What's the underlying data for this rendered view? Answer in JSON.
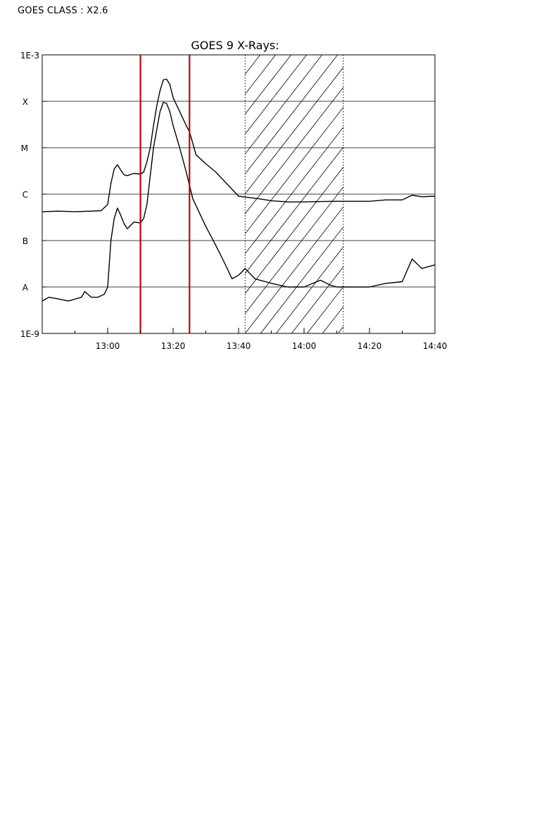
{
  "header": {
    "label": "GOES CLASS : X2.6"
  },
  "chart_data": {
    "type": "line",
    "title": "GOES 9 X-Rays:",
    "xlabel": "",
    "ylabel": "",
    "y_scale": "log",
    "ylim": [
      1e-09,
      0.001
    ],
    "y_ticks": [
      {
        "label": "1E-9",
        "value": 1e-09
      },
      {
        "label": "A",
        "value": 1e-08
      },
      {
        "label": "B",
        "value": 1e-07
      },
      {
        "label": "C",
        "value": 1e-06
      },
      {
        "label": "M",
        "value": 1e-05
      },
      {
        "label": "X",
        "value": 0.0001
      },
      {
        "label": "1E-3",
        "value": 0.001
      }
    ],
    "class_gridlines": [
      1e-08,
      1e-07,
      1e-06,
      1e-05,
      0.0001
    ],
    "x_axis": {
      "unit": "minutes",
      "range": [
        "12:40",
        "14:40"
      ]
    },
    "x_ticks": [
      "13:00",
      "13:20",
      "13:40",
      "14:00",
      "14:20",
      "14:40"
    ],
    "grid": true,
    "series": [
      {
        "color": "#000000",
        "points": [
          [
            "12:40",
            4.2e-07
          ],
          [
            "12:45",
            4.3e-07
          ],
          [
            "12:50",
            4.2e-07
          ],
          [
            "12:55",
            4.3e-07
          ],
          [
            "12:58",
            4.4e-07
          ],
          [
            "13:00",
            6e-07
          ],
          [
            "13:01",
            1.7e-06
          ],
          [
            "13:02",
            3.5e-06
          ],
          [
            "13:03",
            4.3e-06
          ],
          [
            "13:04",
            3.3e-06
          ],
          [
            "13:05",
            2.6e-06
          ],
          [
            "13:06",
            2.5e-06
          ],
          [
            "13:08",
            2.8e-06
          ],
          [
            "13:10",
            2.7e-06
          ],
          [
            "13:11",
            3e-06
          ],
          [
            "13:12",
            5e-06
          ],
          [
            "13:13",
            1e-05
          ],
          [
            "13:14",
            3e-05
          ],
          [
            "13:15",
            8e-05
          ],
          [
            "13:16",
            0.00017
          ],
          [
            "13:17",
            0.00029
          ],
          [
            "13:18",
            0.0003
          ],
          [
            "13:19",
            0.00023
          ],
          [
            "13:20",
            0.00012
          ],
          [
            "13:22",
            6e-05
          ],
          [
            "13:24",
            3e-05
          ],
          [
            "13:25",
            2.2e-05
          ],
          [
            "13:27",
            7e-06
          ],
          [
            "13:30",
            4.5e-06
          ],
          [
            "13:33",
            3e-06
          ],
          [
            "13:36",
            1.8e-06
          ],
          [
            "13:40",
            9e-07
          ],
          [
            "13:43",
            8.5e-07
          ],
          [
            "13:46",
            8e-07
          ],
          [
            "13:50",
            7.2e-07
          ],
          [
            "13:55",
            6.8e-07
          ],
          [
            "14:00",
            6.8e-07
          ],
          [
            "14:05",
            6.9e-07
          ],
          [
            "14:10",
            7e-07
          ],
          [
            "14:15",
            7e-07
          ],
          [
            "14:20",
            7e-07
          ],
          [
            "14:25",
            7.5e-07
          ],
          [
            "14:30",
            7.5e-07
          ],
          [
            "14:33",
            9.5e-07
          ],
          [
            "14:36",
            8.8e-07
          ],
          [
            "14:40",
            9e-07
          ]
        ]
      },
      {
        "color": "#000000",
        "points": [
          [
            "12:40",
            5e-09
          ],
          [
            "12:42",
            6e-09
          ],
          [
            "12:45",
            5.5e-09
          ],
          [
            "12:48",
            5e-09
          ],
          [
            "12:52",
            6e-09
          ],
          [
            "12:53",
            8e-09
          ],
          [
            "12:55",
            6e-09
          ],
          [
            "12:57",
            6e-09
          ],
          [
            "12:59",
            7e-09
          ],
          [
            "13:00",
            1e-08
          ],
          [
            "13:01",
            1e-07
          ],
          [
            "13:02",
            3e-07
          ],
          [
            "13:03",
            5e-07
          ],
          [
            "13:04",
            3.5e-07
          ],
          [
            "13:05",
            2.3e-07
          ],
          [
            "13:06",
            1.8e-07
          ],
          [
            "13:08",
            2.5e-07
          ],
          [
            "13:10",
            2.4e-07
          ],
          [
            "13:11",
            3e-07
          ],
          [
            "13:12",
            6e-07
          ],
          [
            "13:13",
            2.5e-06
          ],
          [
            "13:14",
            1e-05
          ],
          [
            "13:15",
            2.5e-05
          ],
          [
            "13:16",
            6e-05
          ],
          [
            "13:17",
            9.5e-05
          ],
          [
            "13:18",
            9e-05
          ],
          [
            "13:19",
            6e-05
          ],
          [
            "13:20",
            3e-05
          ],
          [
            "13:22",
            1e-05
          ],
          [
            "13:24",
            3e-06
          ],
          [
            "13:26",
            8e-07
          ],
          [
            "13:28",
            4e-07
          ],
          [
            "13:30",
            2e-07
          ],
          [
            "13:33",
            8e-08
          ],
          [
            "13:36",
            3e-08
          ],
          [
            "13:38",
            1.5e-08
          ],
          [
            "13:40",
            1.8e-08
          ],
          [
            "13:42",
            2.5e-08
          ],
          [
            "13:45",
            1.5e-08
          ],
          [
            "13:50",
            1.2e-08
          ],
          [
            "13:55",
            1e-08
          ],
          [
            "14:00",
            1e-08
          ],
          [
            "14:05",
            1.4e-08
          ],
          [
            "14:08",
            1.1e-08
          ],
          [
            "14:10",
            1e-08
          ],
          [
            "14:15",
            1e-08
          ],
          [
            "14:20",
            1e-08
          ],
          [
            "14:25",
            1.2e-08
          ],
          [
            "14:30",
            1.3e-08
          ],
          [
            "14:33",
            4e-08
          ],
          [
            "14:36",
            2.5e-08
          ],
          [
            "14:40",
            3e-08
          ]
        ]
      }
    ],
    "markers": [
      {
        "x": "13:10",
        "color": "#cc0000"
      },
      {
        "x": "13:25",
        "color": "#cc0000"
      }
    ],
    "shaded_interval": {
      "start": "13:42",
      "end": "14:12",
      "pattern": "diagonal-hatch"
    }
  }
}
